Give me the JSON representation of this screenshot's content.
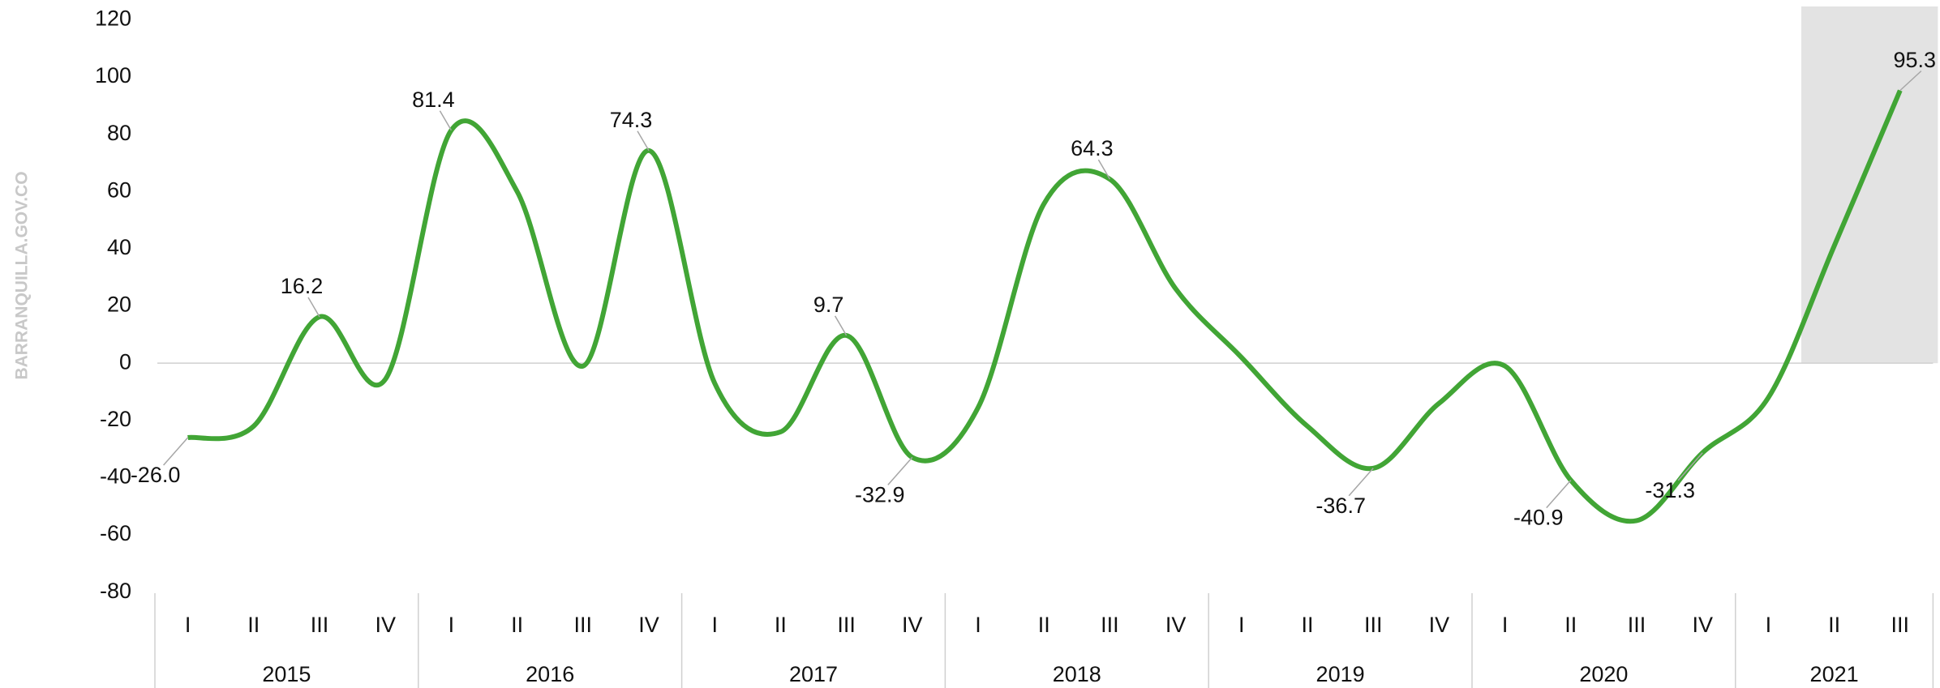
{
  "chart_data": {
    "type": "line",
    "watermark": "BARRANQUILLA.GOV.CO",
    "categories": [
      "I",
      "II",
      "III",
      "IV",
      "I",
      "II",
      "III",
      "IV",
      "I",
      "II",
      "III",
      "IV",
      "I",
      "II",
      "III",
      "IV",
      "I",
      "II",
      "III",
      "IV",
      "I",
      "II",
      "III",
      "IV",
      "I",
      "II",
      "III"
    ],
    "groups": [
      "2015",
      "2016",
      "2017",
      "2018",
      "2019",
      "2020",
      "2021"
    ],
    "series": [
      {
        "color": "#41a535",
        "values": [
          -26.0,
          -22,
          16.2,
          -5.6,
          81.4,
          60,
          -1,
          74.3,
          -7,
          -24,
          9.7,
          -32.9,
          -15.5,
          55.7,
          64.3,
          26,
          2,
          -22,
          -36.7,
          -14,
          -1,
          -40.9,
          -55,
          -31.3,
          -12,
          41,
          95.3
        ],
        "value_labels": [
          "-26.0",
          null,
          "16.2",
          null,
          "81.4",
          null,
          null,
          "74.3",
          null,
          null,
          "9.7",
          "-32.9",
          null,
          null,
          "64.3",
          null,
          null,
          null,
          "-36.7",
          null,
          null,
          "-40.9",
          null,
          "-31.3",
          null,
          null,
          "95.3"
        ]
      }
    ],
    "ylim": [
      -80,
      120
    ],
    "yticks": [
      -80,
      -60,
      -40,
      -20,
      0,
      20,
      40,
      60,
      80,
      100,
      120
    ],
    "zero_line": true
  }
}
